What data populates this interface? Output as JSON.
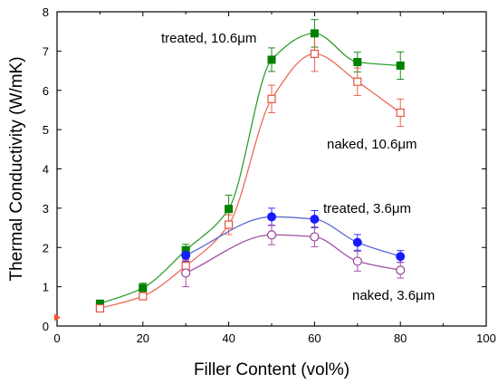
{
  "chart_data": {
    "type": "scatter",
    "title": "",
    "xlabel": "Filler Content (vol%)",
    "ylabel": "Thermal Conductivity (W/mK)",
    "xlim": [
      0,
      100
    ],
    "ylim": [
      0,
      8
    ],
    "xticks": [
      0,
      20,
      40,
      60,
      80,
      100
    ],
    "yticks": [
      0,
      1,
      2,
      3,
      4,
      5,
      6,
      7,
      8
    ],
    "grid": false,
    "legend": "none",
    "baseline_point": {
      "x": 0,
      "y": 0.22,
      "color": "#ff4d2e"
    },
    "series": [
      {
        "name": "treated, 10.6μm",
        "marker": "filled-square",
        "marker_color": "#008000",
        "line_color": "#2ea02e",
        "x": [
          10,
          20,
          30,
          40,
          50,
          60,
          70,
          80
        ],
        "y": [
          0.57,
          0.97,
          1.93,
          2.98,
          6.78,
          7.45,
          6.72,
          6.63
        ],
        "err": [
          0.07,
          0.12,
          0.15,
          0.35,
          0.3,
          0.35,
          0.25,
          0.35
        ]
      },
      {
        "name": "naked, 10.6μm",
        "marker": "open-square",
        "marker_color": "#e8543f",
        "line_color": "#ee6a5a",
        "x": [
          10,
          20,
          30,
          40,
          50,
          60,
          70,
          80
        ],
        "y": [
          0.45,
          0.76,
          1.53,
          2.58,
          5.78,
          6.93,
          6.22,
          5.43
        ],
        "err": [
          0.05,
          0.08,
          0.15,
          0.25,
          0.35,
          0.45,
          0.35,
          0.35
        ]
      },
      {
        "name": "treated, 3.6μm",
        "marker": "filled-circle",
        "marker_color": "#1a1aff",
        "line_color": "#5c6ad6",
        "x": [
          30,
          50,
          60,
          70,
          80
        ],
        "y": [
          1.8,
          2.78,
          2.72,
          2.13,
          1.77
        ],
        "err": [
          0.15,
          0.22,
          0.22,
          0.2,
          0.15
        ]
      },
      {
        "name": "naked, 3.6μm",
        "marker": "open-circle",
        "marker_color": "#9a3f9a",
        "line_color": "#a34ea3",
        "x": [
          30,
          50,
          60,
          70,
          80
        ],
        "y": [
          1.35,
          2.32,
          2.27,
          1.65,
          1.42
        ],
        "err": [
          0.35,
          0.25,
          0.25,
          0.25,
          0.2
        ]
      }
    ],
    "annotations": [
      {
        "text": "treated, 10.6μm",
        "series": 0
      },
      {
        "text": "naked, 10.6μm",
        "series": 1
      },
      {
        "text": "treated, 3.6μm",
        "series": 2
      },
      {
        "text": "naked, 3.6μm",
        "series": 3
      }
    ]
  }
}
